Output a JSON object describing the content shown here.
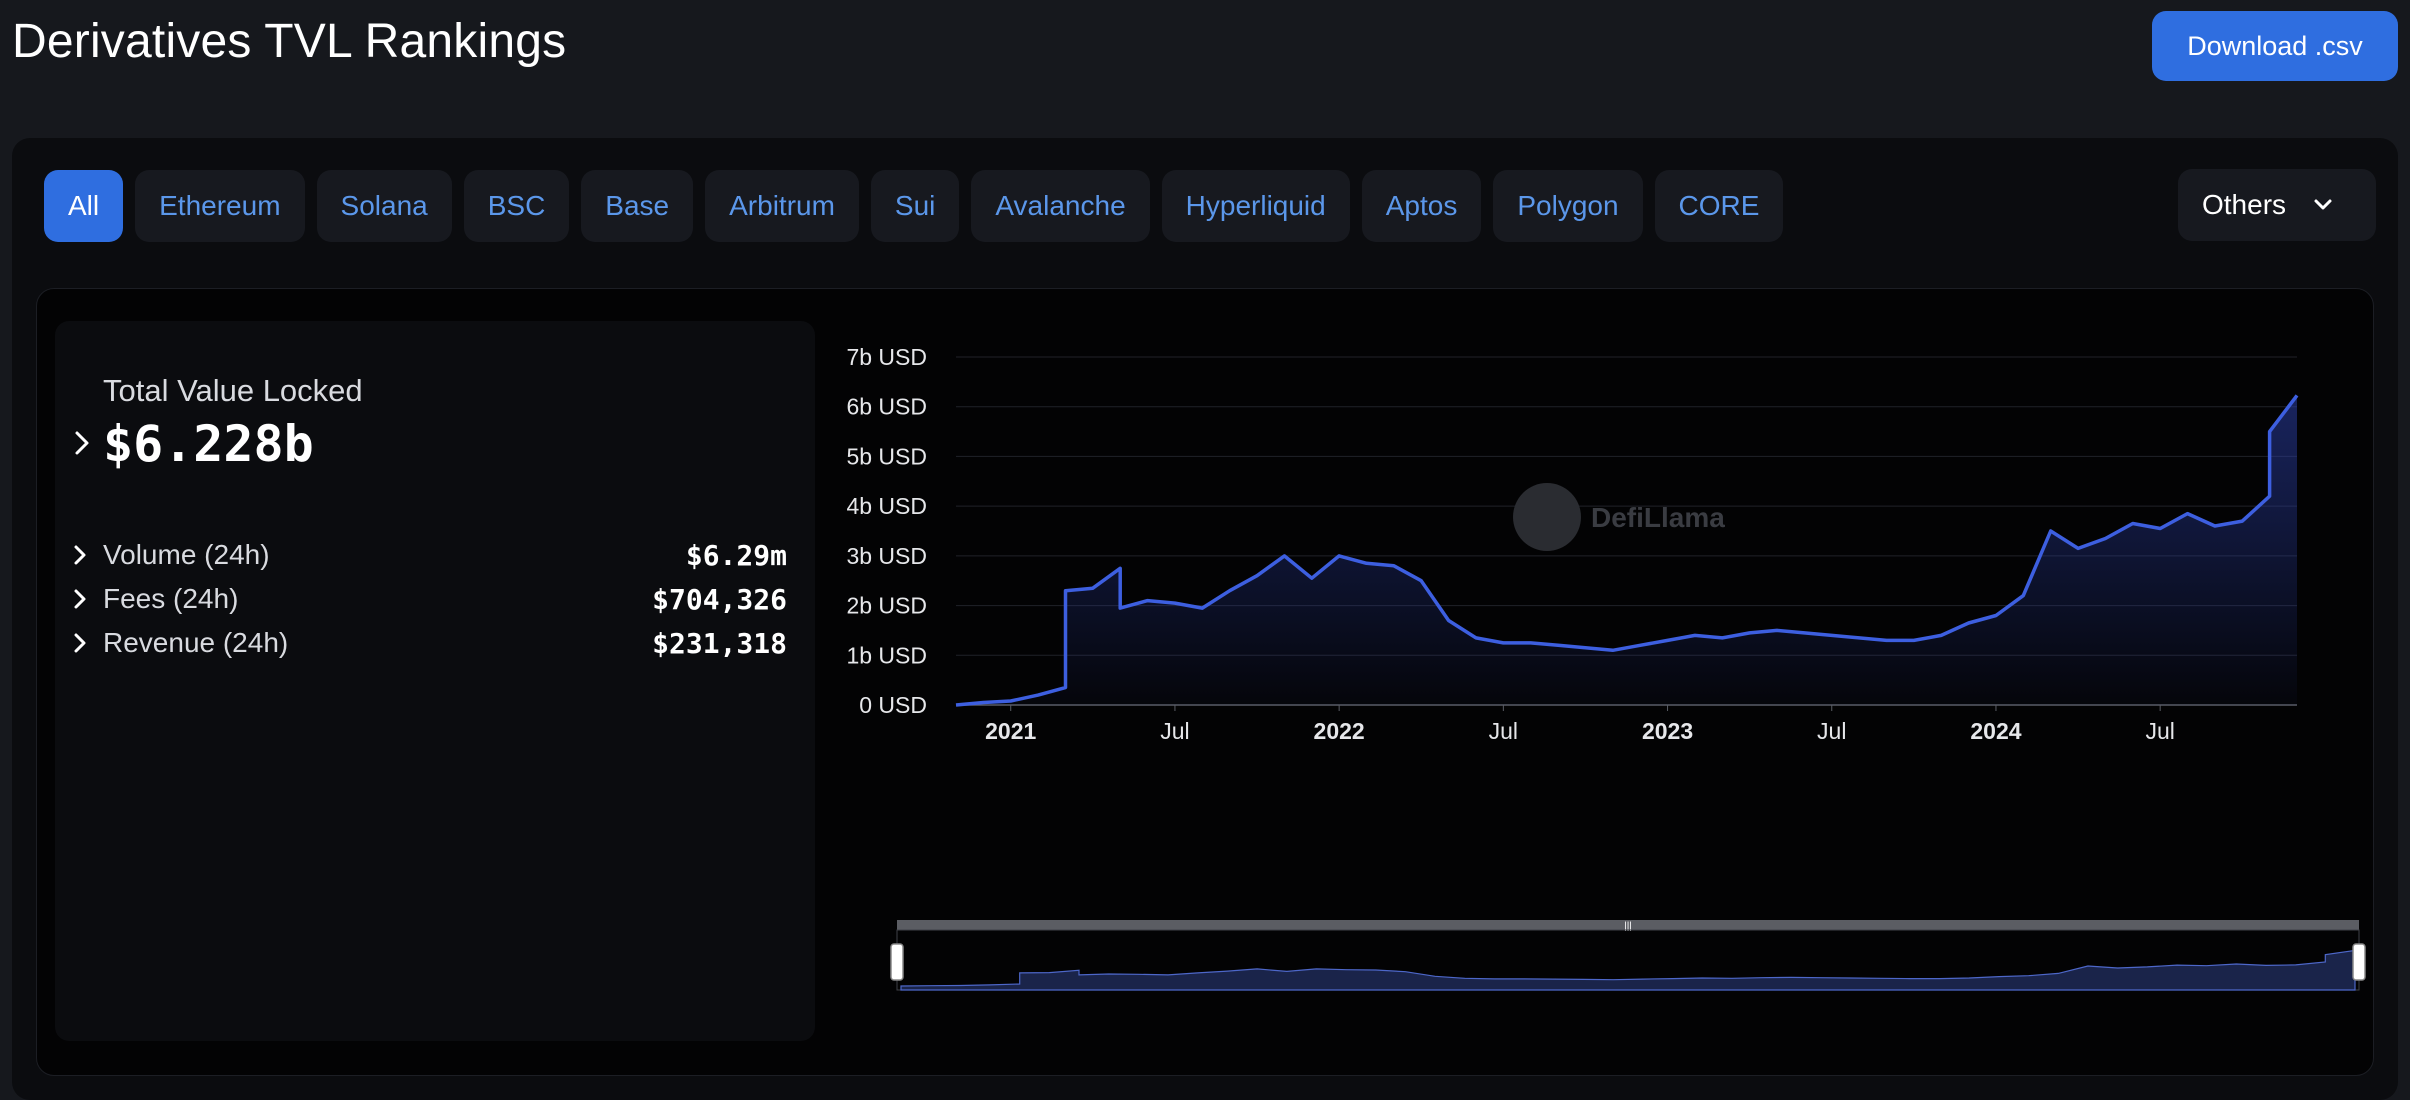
{
  "header": {
    "title": "Derivatives TVL Rankings",
    "download_label": "Download .csv"
  },
  "chains": {
    "tabs": [
      "All",
      "Ethereum",
      "Solana",
      "BSC",
      "Base",
      "Arbitrum",
      "Sui",
      "Avalanche",
      "Hyperliquid",
      "Aptos",
      "Polygon",
      "CORE"
    ],
    "active": "All",
    "others_label": "Others"
  },
  "stats": {
    "tvl_label": "Total Value Locked",
    "tvl_value": "$6.228b",
    "rows": [
      {
        "label": "Volume (24h)",
        "value": "$6.29m"
      },
      {
        "label": "Fees (24h)",
        "value": "$704,326"
      },
      {
        "label": "Revenue (24h)",
        "value": "$231,318"
      }
    ]
  },
  "watermark": "DefiLlama",
  "colors": {
    "accent": "#2f6ee0",
    "line": "#3d5fe0",
    "tab_text": "#5b97ea"
  },
  "chart_data": {
    "type": "area",
    "x_format": "year-month",
    "ylim": [
      0,
      7
    ],
    "y_unit": "b USD",
    "ytick_labels": [
      "0 USD",
      "1b USD",
      "2b USD",
      "3b USD",
      "4b USD",
      "5b USD",
      "6b USD",
      "7b USD"
    ],
    "xtick_labels": [
      {
        "at": "2021-01",
        "label": "2021",
        "bold": true
      },
      {
        "at": "2021-07",
        "label": "Jul",
        "bold": false
      },
      {
        "at": "2022-01",
        "label": "2022",
        "bold": true
      },
      {
        "at": "2022-07",
        "label": "Jul",
        "bold": false
      },
      {
        "at": "2023-01",
        "label": "2023",
        "bold": true
      },
      {
        "at": "2023-07",
        "label": "Jul",
        "bold": false
      },
      {
        "at": "2024-01",
        "label": "2024",
        "bold": true
      },
      {
        "at": "2024-07",
        "label": "Jul",
        "bold": false
      }
    ],
    "grid": true,
    "series": [
      {
        "values": [
          [
            "2020-11",
            0.0
          ],
          [
            "2020-12",
            0.05
          ],
          [
            "2021-01",
            0.08
          ],
          [
            "2021-02",
            0.2
          ],
          [
            "2021-03",
            0.35
          ],
          [
            "2021-03",
            2.3
          ],
          [
            "2021-04",
            2.35
          ],
          [
            "2021-05",
            2.75
          ],
          [
            "2021-05",
            1.95
          ],
          [
            "2021-06",
            2.1
          ],
          [
            "2021-07",
            2.05
          ],
          [
            "2021-08",
            1.95
          ],
          [
            "2021-09",
            2.3
          ],
          [
            "2021-10",
            2.6
          ],
          [
            "2021-11",
            3.0
          ],
          [
            "2021-12",
            2.55
          ],
          [
            "2022-01",
            3.0
          ],
          [
            "2022-02",
            2.85
          ],
          [
            "2022-03",
            2.8
          ],
          [
            "2022-04",
            2.5
          ],
          [
            "2022-05",
            1.7
          ],
          [
            "2022-06",
            1.35
          ],
          [
            "2022-07",
            1.25
          ],
          [
            "2022-08",
            1.25
          ],
          [
            "2022-09",
            1.2
          ],
          [
            "2022-10",
            1.15
          ],
          [
            "2022-11",
            1.1
          ],
          [
            "2022-12",
            1.2
          ],
          [
            "2023-01",
            1.3
          ],
          [
            "2023-02",
            1.4
          ],
          [
            "2023-03",
            1.35
          ],
          [
            "2023-04",
            1.45
          ],
          [
            "2023-05",
            1.5
          ],
          [
            "2023-06",
            1.45
          ],
          [
            "2023-07",
            1.4
          ],
          [
            "2023-08",
            1.35
          ],
          [
            "2023-09",
            1.3
          ],
          [
            "2023-10",
            1.3
          ],
          [
            "2023-11",
            1.4
          ],
          [
            "2023-12",
            1.65
          ],
          [
            "2024-01",
            1.8
          ],
          [
            "2024-02",
            2.2
          ],
          [
            "2024-03",
            3.5
          ],
          [
            "2024-04",
            3.15
          ],
          [
            "2024-05",
            3.35
          ],
          [
            "2024-06",
            3.65
          ],
          [
            "2024-07",
            3.55
          ],
          [
            "2024-08",
            3.85
          ],
          [
            "2024-09",
            3.6
          ],
          [
            "2024-10",
            3.7
          ],
          [
            "2024-11",
            4.2
          ],
          [
            "2024-11",
            5.5
          ],
          [
            "2024-12",
            6.228
          ]
        ]
      }
    ]
  }
}
